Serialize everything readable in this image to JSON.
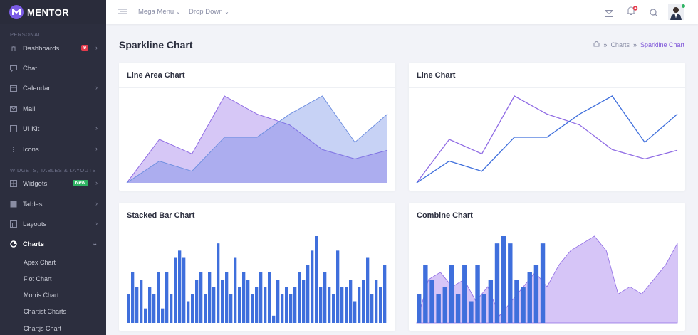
{
  "app": {
    "brand": "MENTOR"
  },
  "sidebar": {
    "section_personal": "Personal",
    "section_widgets": "Widgets, Tables & Layouts",
    "items": [
      {
        "label": "Dashboards",
        "badge": "9",
        "icon": "dashboard-icon"
      },
      {
        "label": "Chat",
        "icon": "chat-icon"
      },
      {
        "label": "Calendar",
        "icon": "calendar-icon"
      },
      {
        "label": "Mail",
        "icon": "mail-icon"
      },
      {
        "label": "UI Kit",
        "icon": "uikit-icon"
      },
      {
        "label": "Icons",
        "icon": "icons-icon"
      },
      {
        "label": "Widgets",
        "badge": "New",
        "icon": "widgets-icon"
      },
      {
        "label": "Tables",
        "icon": "tables-icon"
      },
      {
        "label": "Layouts",
        "icon": "layouts-icon"
      },
      {
        "label": "Charts",
        "icon": "charts-icon"
      }
    ],
    "chart_subitems": [
      "Apex Chart",
      "Flot Chart",
      "Morris Chart",
      "Chartist Charts",
      "Chartjs Chart"
    ]
  },
  "topbar": {
    "mega_menu": "Mega Menu",
    "drop_down": "Drop Down"
  },
  "page": {
    "title": "Sparkline Chart",
    "breadcrumb": [
      "Charts",
      "Sparkline Chart"
    ]
  },
  "cards": {
    "line_area": "Line Area Chart",
    "line": "Line Chart",
    "stacked_bar": "Stacked Bar Chart",
    "combine": "Combine Chart"
  },
  "colors": {
    "purple": "#8f6be4",
    "blue": "#3f6fdc",
    "accent": "#8158d9",
    "sidebar": "#2c2e3e"
  },
  "chart_data": [
    {
      "type": "area",
      "x": [
        0,
        1,
        2,
        3,
        4,
        5,
        6,
        7,
        8
      ],
      "series": [
        {
          "values": [
            0,
            6,
            4,
            12,
            9.5,
            8,
            4.6,
            3.3,
            4.5
          ]
        },
        {
          "values": [
            0,
            3,
            1.6,
            6.3,
            6.3,
            9.5,
            12,
            5.6,
            9.5
          ]
        }
      ],
      "ylim": [
        0,
        12
      ]
    },
    {
      "type": "line",
      "x": [
        0,
        1,
        2,
        3,
        4,
        5,
        6,
        7,
        8
      ],
      "series": [
        {
          "values": [
            0,
            6,
            4,
            12,
            9.5,
            8,
            4.6,
            3.3,
            4.5
          ]
        },
        {
          "values": [
            0,
            3,
            1.6,
            6.3,
            6.3,
            9.5,
            12,
            5.6,
            9.5
          ]
        }
      ],
      "ylim": [
        0,
        12
      ]
    },
    {
      "type": "bar",
      "values": [
        4,
        7,
        5,
        6,
        2,
        5,
        4,
        7,
        2,
        7,
        4,
        9,
        10,
        9,
        3,
        4,
        6,
        7,
        4,
        7,
        5,
        11,
        6,
        7,
        4,
        9,
        5,
        7,
        6,
        4,
        5,
        7,
        5,
        7,
        1,
        6,
        4,
        5,
        4,
        5,
        7,
        6,
        8,
        10,
        12,
        5,
        7,
        5,
        4,
        10,
        5,
        5,
        6,
        3,
        5,
        6,
        9,
        4,
        6,
        5,
        8
      ],
      "ylim": [
        0,
        12
      ]
    },
    {
      "type": "bar",
      "values": [
        4,
        8,
        6,
        4,
        5,
        8,
        4,
        8,
        3,
        8,
        4,
        6,
        11,
        12,
        11,
        6,
        5,
        7,
        8,
        11
      ],
      "series_area": [
        0,
        6,
        7,
        5,
        6,
        3,
        5,
        1,
        3,
        5,
        7,
        5,
        8,
        10,
        11,
        12,
        10,
        4,
        5,
        4,
        6,
        8,
        11
      ],
      "ylim": [
        0,
        12
      ]
    }
  ]
}
